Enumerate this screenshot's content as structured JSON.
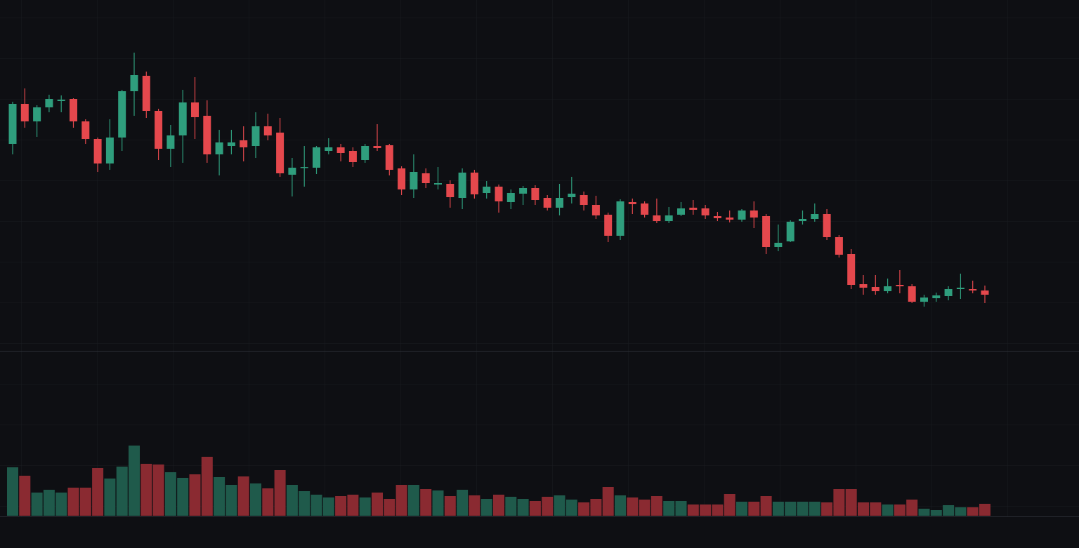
{
  "chart_data": {
    "type": "candlestick",
    "open": [
      295,
      352,
      327,
      347,
      356,
      359,
      327,
      302,
      267,
      304,
      370,
      392,
      342,
      288,
      307,
      354,
      335,
      280,
      292,
      300,
      292,
      320,
      311,
      251,
      261,
      261,
      285,
      290,
      285,
      272,
      292,
      293,
      260,
      230,
      253,
      237,
      238,
      218,
      254,
      225,
      234,
      212,
      224,
      232,
      218,
      204,
      219,
      222,
      208,
      194,
      164,
      212,
      210,
      193,
      185,
      194,
      204,
      203,
      192,
      190,
      187,
      200,
      192,
      148,
      156,
      185,
      188,
      195,
      162,
      138,
      95,
      91,
      85,
      94,
      92,
      70,
      75,
      78,
      88,
      88,
      86
    ],
    "high": [
      355,
      374,
      350,
      365,
      364,
      360,
      330,
      304,
      330,
      372,
      425,
      398,
      345,
      322,
      372,
      390,
      357,
      315,
      315,
      320,
      340,
      338,
      332,
      275,
      292,
      292,
      303,
      295,
      290,
      295,
      323,
      295,
      263,
      280,
      260,
      262,
      243,
      260,
      258,
      242,
      237,
      230,
      235,
      236,
      222,
      238,
      248,
      227,
      221,
      197,
      216,
      217,
      213,
      217,
      205,
      212,
      215,
      208,
      198,
      200,
      202,
      213,
      195,
      180,
      186,
      200,
      210,
      202,
      165,
      145,
      108,
      108,
      103,
      115,
      95,
      80,
      83,
      92,
      110,
      100,
      93
    ],
    "low": [
      280,
      318,
      305,
      340,
      340,
      318,
      295,
      255,
      258,
      285,
      335,
      332,
      272,
      262,
      268,
      302,
      268,
      250,
      280,
      270,
      275,
      300,
      248,
      220,
      234,
      252,
      280,
      270,
      262,
      268,
      285,
      250,
      222,
      218,
      232,
      230,
      204,
      202,
      217,
      217,
      197,
      202,
      208,
      208,
      200,
      193,
      210,
      200,
      188,
      155,
      158,
      195,
      190,
      182,
      182,
      192,
      194,
      188,
      185,
      183,
      184,
      175,
      138,
      142,
      155,
      180,
      184,
      158,
      133,
      88,
      80,
      80,
      82,
      82,
      68,
      63,
      70,
      72,
      74,
      82,
      68
    ],
    "close": [
      352,
      327,
      347,
      359,
      358,
      327,
      302,
      267,
      304,
      370,
      393,
      342,
      288,
      307,
      354,
      333,
      280,
      297,
      297,
      290,
      320,
      307,
      253,
      261,
      262,
      290,
      290,
      282,
      269,
      292,
      289,
      258,
      230,
      255,
      239,
      239,
      219,
      254,
      223,
      234,
      213,
      225,
      232,
      215,
      204,
      218,
      224,
      208,
      193,
      164,
      213,
      209,
      194,
      185,
      193,
      203,
      201,
      193,
      189,
      187,
      200,
      190,
      148,
      154,
      184,
      188,
      195,
      162,
      137,
      94,
      90,
      85,
      92,
      92,
      70,
      76,
      79,
      88,
      90,
      86,
      80
    ],
    "volume": [
      69,
      57,
      33,
      37,
      33,
      40,
      40,
      68,
      53,
      70,
      100,
      74,
      73,
      62,
      54,
      59,
      84,
      55,
      44,
      56,
      46,
      39,
      65,
      44,
      35,
      30,
      26,
      28,
      30,
      26,
      33,
      24,
      44,
      44,
      38,
      36,
      28,
      37,
      29,
      24,
      30,
      27,
      24,
      21,
      27,
      29,
      23,
      19,
      24,
      41,
      29,
      26,
      23,
      28,
      21,
      21,
      16,
      16,
      16,
      31,
      20,
      20,
      28,
      20,
      20,
      20,
      20,
      19,
      38,
      38,
      19,
      19,
      16,
      16,
      23,
      10,
      8,
      15,
      12,
      12,
      17
    ],
    "ylim": [
      0,
      500
    ],
    "volume_ylim": [
      0,
      235
    ],
    "up_color": "#2f9e7d",
    "down_color": "#e5484d",
    "up_volume_color": "#1f5a4b",
    "down_volume_color": "#8a2a31"
  }
}
